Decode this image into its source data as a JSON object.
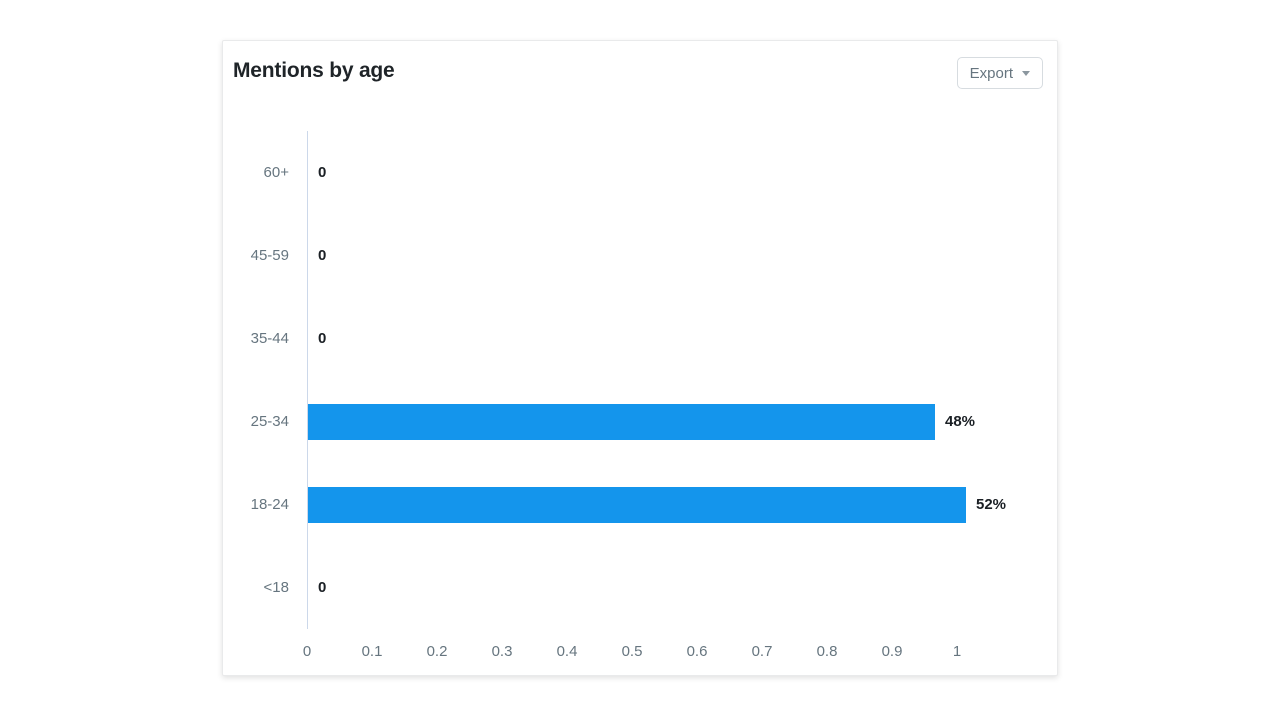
{
  "card": {
    "title": "Mentions by age",
    "export": {
      "label": "Export"
    }
  },
  "chart_data": {
    "type": "bar",
    "orientation": "horizontal",
    "title": "Mentions by age",
    "categories": [
      "60+",
      "45-59",
      "35-44",
      "25-34",
      "18-24",
      "<18"
    ],
    "values": [
      0,
      0,
      0,
      48,
      52,
      0
    ],
    "unit": "% of mentions",
    "value_labels": [
      "0",
      "0",
      "0",
      "48%",
      "52%",
      "0"
    ],
    "bar_axis_spans": [
      0,
      0,
      0,
      0.965,
      1.012,
      0
    ],
    "x_tick_labels": [
      "0",
      "0.1",
      "0.2",
      "0.3",
      "0.4",
      "0.5",
      "0.6",
      "0.7",
      "0.8",
      "0.9",
      "1"
    ],
    "xlim": [
      0,
      1
    ],
    "grid": false,
    "legend": false,
    "colors": {
      "bar": "#1495EC",
      "axis_line": "#CCD8EA",
      "category_label": "#66757F",
      "tick_label": "#66757F",
      "value_label": "#1A1F24"
    }
  }
}
